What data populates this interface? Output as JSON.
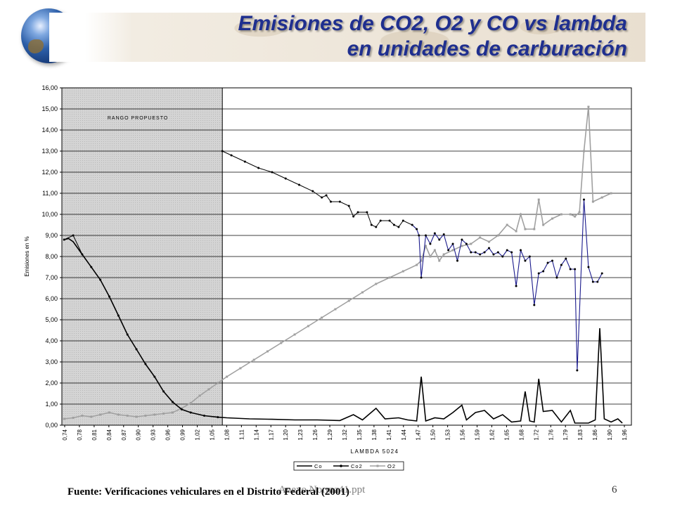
{
  "slide": {
    "title_line1": "Emisiones de CO2, O2  y CO  vs lambda",
    "title_line2": "en  unidades de carburación",
    "source": "Fuente: Verificaciones vehiculares en el Distrito Federal (2001)",
    "file_label": "Anexo Norma41.ppt",
    "slide_number": "6"
  },
  "colors": {
    "title": "#1f2f8f",
    "co": "#000000",
    "co2_early": "#000000",
    "co2_late": "#1a1a8c",
    "o2": "#a0a0a0",
    "shaded_region": "#d4d4d4"
  },
  "chart_data": {
    "type": "line",
    "ylabel": "Emisiones en %",
    "xlabel": "LAMBDA 5024",
    "ylim": [
      0,
      16
    ],
    "yticks": [
      "0,00",
      "1,00",
      "2,00",
      "3,00",
      "4,00",
      "5,00",
      "6,00",
      "7,00",
      "8,00",
      "9,00",
      "10,00",
      "11,00",
      "12,00",
      "13,00",
      "14,00",
      "15,00",
      "16,00"
    ],
    "xlim": [
      0.735,
      1.995
    ],
    "xticks": [
      "0,74",
      "0,78",
      "0,81",
      "0,84",
      "0,87",
      "0,90",
      "0,93",
      "0,96",
      "0,99",
      "1,02",
      "1,05",
      "1,08",
      "1,11",
      "1,14",
      "1,17",
      "1,20",
      "1,23",
      "1,26",
      "1,29",
      "1,32",
      "1,35",
      "1,38",
      "1,41",
      "1,44",
      "1,47",
      "1,50",
      "1,53",
      "1,56",
      "1,59",
      "1,62",
      "1,65",
      "1,68",
      "1,72",
      "1,76",
      "1,79",
      "1,83",
      "1,86",
      "1,90",
      "1,96"
    ],
    "grid": "horizontal",
    "legend_position": "bottom",
    "shaded_region": {
      "label": "RANGO PROPUESTO",
      "x_range": [
        0.735,
        1.09
      ]
    },
    "series": [
      {
        "name": "Co",
        "points": [
          [
            0.74,
            8.8
          ],
          [
            0.75,
            8.85
          ],
          [
            0.76,
            8.7
          ],
          [
            0.78,
            8.1
          ],
          [
            0.8,
            7.5
          ],
          [
            0.82,
            6.9
          ],
          [
            0.84,
            6.1
          ],
          [
            0.86,
            5.2
          ],
          [
            0.88,
            4.3
          ],
          [
            0.9,
            3.6
          ],
          [
            0.92,
            2.9
          ],
          [
            0.94,
            2.3
          ],
          [
            0.96,
            1.6
          ],
          [
            0.98,
            1.1
          ],
          [
            1.0,
            0.75
          ],
          [
            1.02,
            0.6
          ],
          [
            1.05,
            0.45
          ],
          [
            1.08,
            0.38
          ],
          [
            1.1,
            0.35
          ],
          [
            1.15,
            0.3
          ],
          [
            1.2,
            0.28
          ],
          [
            1.25,
            0.25
          ],
          [
            1.3,
            0.25
          ],
          [
            1.35,
            0.22
          ],
          [
            1.38,
            0.5
          ],
          [
            1.4,
            0.25
          ],
          [
            1.43,
            0.8
          ],
          [
            1.45,
            0.3
          ],
          [
            1.48,
            0.35
          ],
          [
            1.5,
            0.25
          ],
          [
            1.52,
            0.2
          ],
          [
            1.53,
            2.3
          ],
          [
            1.54,
            0.2
          ],
          [
            1.56,
            0.35
          ],
          [
            1.58,
            0.3
          ],
          [
            1.6,
            0.6
          ],
          [
            1.62,
            0.95
          ],
          [
            1.63,
            0.25
          ],
          [
            1.65,
            0.6
          ],
          [
            1.67,
            0.7
          ],
          [
            1.69,
            0.3
          ],
          [
            1.71,
            0.5
          ],
          [
            1.73,
            0.15
          ],
          [
            1.75,
            0.2
          ],
          [
            1.76,
            1.6
          ],
          [
            1.77,
            0.2
          ],
          [
            1.78,
            0.15
          ],
          [
            1.79,
            2.2
          ],
          [
            1.8,
            0.65
          ],
          [
            1.82,
            0.7
          ],
          [
            1.84,
            0.15
          ],
          [
            1.86,
            0.7
          ],
          [
            1.87,
            0.1
          ],
          [
            1.9,
            0.1
          ],
          [
            1.915,
            0.25
          ],
          [
            1.925,
            4.6
          ],
          [
            1.935,
            0.3
          ],
          [
            1.95,
            0.15
          ],
          [
            1.965,
            0.3
          ],
          [
            1.975,
            0.1
          ]
        ]
      },
      {
        "name": "Co2",
        "points": [
          [
            0.74,
            8.8
          ],
          [
            0.76,
            9.0
          ],
          [
            0.78,
            8.1
          ],
          [
            0.8,
            7.5
          ],
          [
            0.82,
            6.9
          ],
          [
            0.84,
            6.1
          ],
          [
            0.86,
            5.2
          ],
          [
            0.88,
            4.3
          ],
          [
            0.9,
            3.6
          ],
          [
            0.92,
            2.9
          ],
          [
            0.94,
            2.3
          ],
          [
            0.96,
            1.6
          ],
          [
            0.98,
            1.1
          ],
          [
            1.0,
            0.75
          ],
          [
            1.02,
            0.6
          ],
          [
            1.05,
            0.45
          ],
          [
            1.08,
            0.38
          ],
          [
            1.09,
            13.0
          ],
          [
            1.11,
            12.8
          ],
          [
            1.14,
            12.5
          ],
          [
            1.17,
            12.2
          ],
          [
            1.2,
            12.0
          ],
          [
            1.23,
            11.7
          ],
          [
            1.26,
            11.4
          ],
          [
            1.29,
            11.1
          ],
          [
            1.31,
            10.8
          ],
          [
            1.32,
            10.9
          ],
          [
            1.33,
            10.6
          ],
          [
            1.35,
            10.6
          ],
          [
            1.37,
            10.4
          ],
          [
            1.38,
            9.9
          ],
          [
            1.39,
            10.1
          ],
          [
            1.41,
            10.1
          ],
          [
            1.42,
            9.5
          ],
          [
            1.43,
            9.4
          ],
          [
            1.44,
            9.7
          ],
          [
            1.46,
            9.7
          ],
          [
            1.47,
            9.5
          ],
          [
            1.48,
            9.4
          ],
          [
            1.49,
            9.7
          ],
          [
            1.51,
            9.5
          ],
          [
            1.52,
            9.3
          ],
          [
            1.525,
            9.0
          ],
          [
            1.53,
            7.0
          ],
          [
            1.54,
            9.0
          ],
          [
            1.55,
            8.6
          ],
          [
            1.56,
            9.1
          ],
          [
            1.57,
            8.8
          ],
          [
            1.58,
            9.05
          ],
          [
            1.59,
            8.3
          ],
          [
            1.6,
            8.6
          ],
          [
            1.61,
            7.8
          ],
          [
            1.62,
            8.8
          ],
          [
            1.63,
            8.6
          ],
          [
            1.64,
            8.2
          ],
          [
            1.65,
            8.2
          ],
          [
            1.66,
            8.1
          ],
          [
            1.67,
            8.2
          ],
          [
            1.68,
            8.4
          ],
          [
            1.69,
            8.1
          ],
          [
            1.7,
            8.2
          ],
          [
            1.71,
            8.0
          ],
          [
            1.72,
            8.3
          ],
          [
            1.73,
            8.2
          ],
          [
            1.74,
            6.6
          ],
          [
            1.75,
            8.3
          ],
          [
            1.76,
            7.8
          ],
          [
            1.77,
            8.0
          ],
          [
            1.78,
            5.7
          ],
          [
            1.79,
            7.2
          ],
          [
            1.8,
            7.3
          ],
          [
            1.81,
            7.7
          ],
          [
            1.82,
            7.8
          ],
          [
            1.83,
            7.0
          ],
          [
            1.84,
            7.6
          ],
          [
            1.85,
            7.9
          ],
          [
            1.86,
            7.4
          ],
          [
            1.87,
            7.4
          ],
          [
            1.875,
            2.6
          ],
          [
            1.89,
            10.7
          ],
          [
            1.9,
            7.5
          ],
          [
            1.91,
            6.8
          ],
          [
            1.92,
            6.8
          ],
          [
            1.93,
            7.2
          ]
        ]
      },
      {
        "name": "O2",
        "points": [
          [
            0.74,
            0.3
          ],
          [
            0.76,
            0.35
          ],
          [
            0.78,
            0.45
          ],
          [
            0.8,
            0.4
          ],
          [
            0.82,
            0.5
          ],
          [
            0.84,
            0.6
          ],
          [
            0.86,
            0.5
          ],
          [
            0.88,
            0.45
          ],
          [
            0.9,
            0.4
          ],
          [
            0.92,
            0.45
          ],
          [
            0.94,
            0.5
          ],
          [
            0.96,
            0.55
          ],
          [
            0.98,
            0.6
          ],
          [
            1.0,
            0.8
          ],
          [
            1.02,
            1.05
          ],
          [
            1.04,
            1.4
          ],
          [
            1.06,
            1.7
          ],
          [
            1.08,
            2.0
          ],
          [
            1.1,
            2.3
          ],
          [
            1.13,
            2.7
          ],
          [
            1.16,
            3.1
          ],
          [
            1.19,
            3.5
          ],
          [
            1.22,
            3.9
          ],
          [
            1.25,
            4.3
          ],
          [
            1.28,
            4.7
          ],
          [
            1.31,
            5.1
          ],
          [
            1.34,
            5.5
          ],
          [
            1.37,
            5.9
          ],
          [
            1.4,
            6.3
          ],
          [
            1.43,
            6.7
          ],
          [
            1.46,
            7.0
          ],
          [
            1.49,
            7.3
          ],
          [
            1.52,
            7.6
          ],
          [
            1.53,
            7.8
          ],
          [
            1.54,
            8.5
          ],
          [
            1.55,
            8.0
          ],
          [
            1.56,
            8.3
          ],
          [
            1.57,
            7.8
          ],
          [
            1.58,
            8.1
          ],
          [
            1.6,
            8.3
          ],
          [
            1.62,
            8.5
          ],
          [
            1.64,
            8.6
          ],
          [
            1.66,
            8.9
          ],
          [
            1.68,
            8.7
          ],
          [
            1.7,
            9.0
          ],
          [
            1.72,
            9.5
          ],
          [
            1.74,
            9.2
          ],
          [
            1.75,
            10.0
          ],
          [
            1.76,
            9.3
          ],
          [
            1.78,
            9.3
          ],
          [
            1.79,
            10.7
          ],
          [
            1.8,
            9.5
          ],
          [
            1.82,
            9.8
          ],
          [
            1.84,
            10.0
          ],
          [
            1.86,
            10.0
          ],
          [
            1.87,
            9.9
          ],
          [
            1.88,
            10.1
          ],
          [
            1.89,
            13.0
          ],
          [
            1.9,
            15.1
          ],
          [
            1.91,
            10.6
          ],
          [
            1.93,
            10.8
          ],
          [
            1.95,
            11.0
          ]
        ]
      }
    ]
  }
}
